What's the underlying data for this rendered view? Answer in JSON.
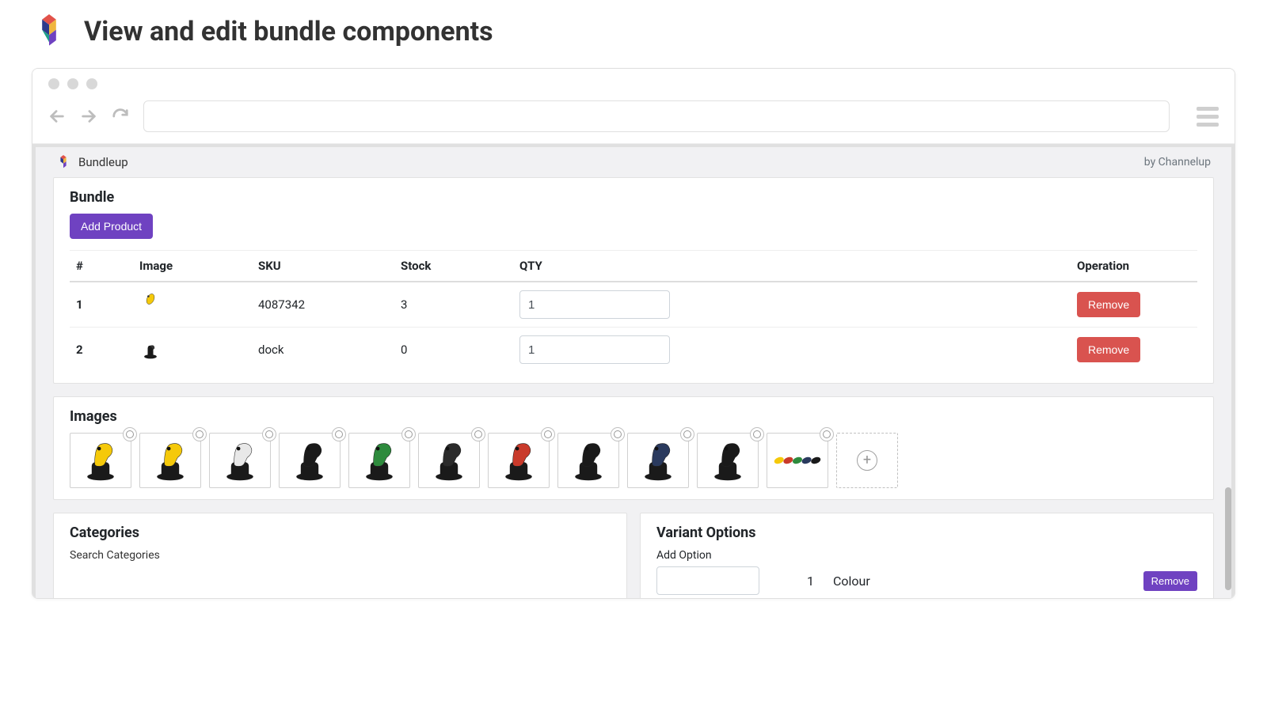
{
  "page_title": "View and edit bundle components",
  "browser": {
    "app_name": "Bundleup",
    "by_line": "by Channelup"
  },
  "colors": {
    "purple": "#6f42c1",
    "danger": "#d9534f",
    "gray_text": "#6c757d",
    "border": "#e0e0e0"
  },
  "bundle": {
    "title": "Bundle",
    "add_label": "Add Product",
    "columns": [
      "#",
      "Image",
      "SKU",
      "Stock",
      "QTY",
      "Operation"
    ],
    "remove_label": "Remove",
    "rows": [
      {
        "num": "1",
        "sku": "4087342",
        "stock": "3",
        "qty": "1",
        "thumb": "scanner-yellow"
      },
      {
        "num": "2",
        "sku": "dock",
        "stock": "0",
        "qty": "1",
        "thumb": "dock-black"
      }
    ]
  },
  "images": {
    "title": "Images",
    "tiles": [
      {
        "name": "scanner-yellow-on-dock",
        "device": "#f5c90a",
        "dock": "#1a1a1a"
      },
      {
        "name": "scanner-yellow2-on-dock",
        "device": "#f5c90a",
        "dock": "#1a1a1a"
      },
      {
        "name": "scanner-white-on-dock",
        "device": "#e8e8e8",
        "dock": "#1a1a1a"
      },
      {
        "name": "scanner-black-on-dock",
        "device": "#1a1a1a",
        "dock": "#1a1a1a"
      },
      {
        "name": "scanner-green-on-dock",
        "device": "#2e8b3d",
        "dock": "#1a1a1a"
      },
      {
        "name": "scanner-dark-on-dock",
        "device": "#2b2b2b",
        "dock": "#1a1a1a"
      },
      {
        "name": "scanner-red-on-dock",
        "device": "#c93a2b",
        "dock": "#1a1a1a"
      },
      {
        "name": "scanner-black2-on-dock",
        "device": "#1a1a1a",
        "dock": "#1a1a1a"
      },
      {
        "name": "scanner-navy-on-dock",
        "device": "#2a3a5e",
        "dock": "#1a1a1a"
      },
      {
        "name": "scanner-black3-on-dock",
        "device": "#1a1a1a",
        "dock": "#1a1a1a"
      },
      {
        "name": "scanner-assorted",
        "device": "mixed",
        "dock": null
      }
    ]
  },
  "categories": {
    "title": "Categories",
    "search_label": "Search Categories"
  },
  "variants": {
    "title": "Variant Options",
    "add_label": "Add Option",
    "rows": [
      {
        "num": "1",
        "name": "Colour",
        "remove_label": "Remove"
      }
    ]
  }
}
